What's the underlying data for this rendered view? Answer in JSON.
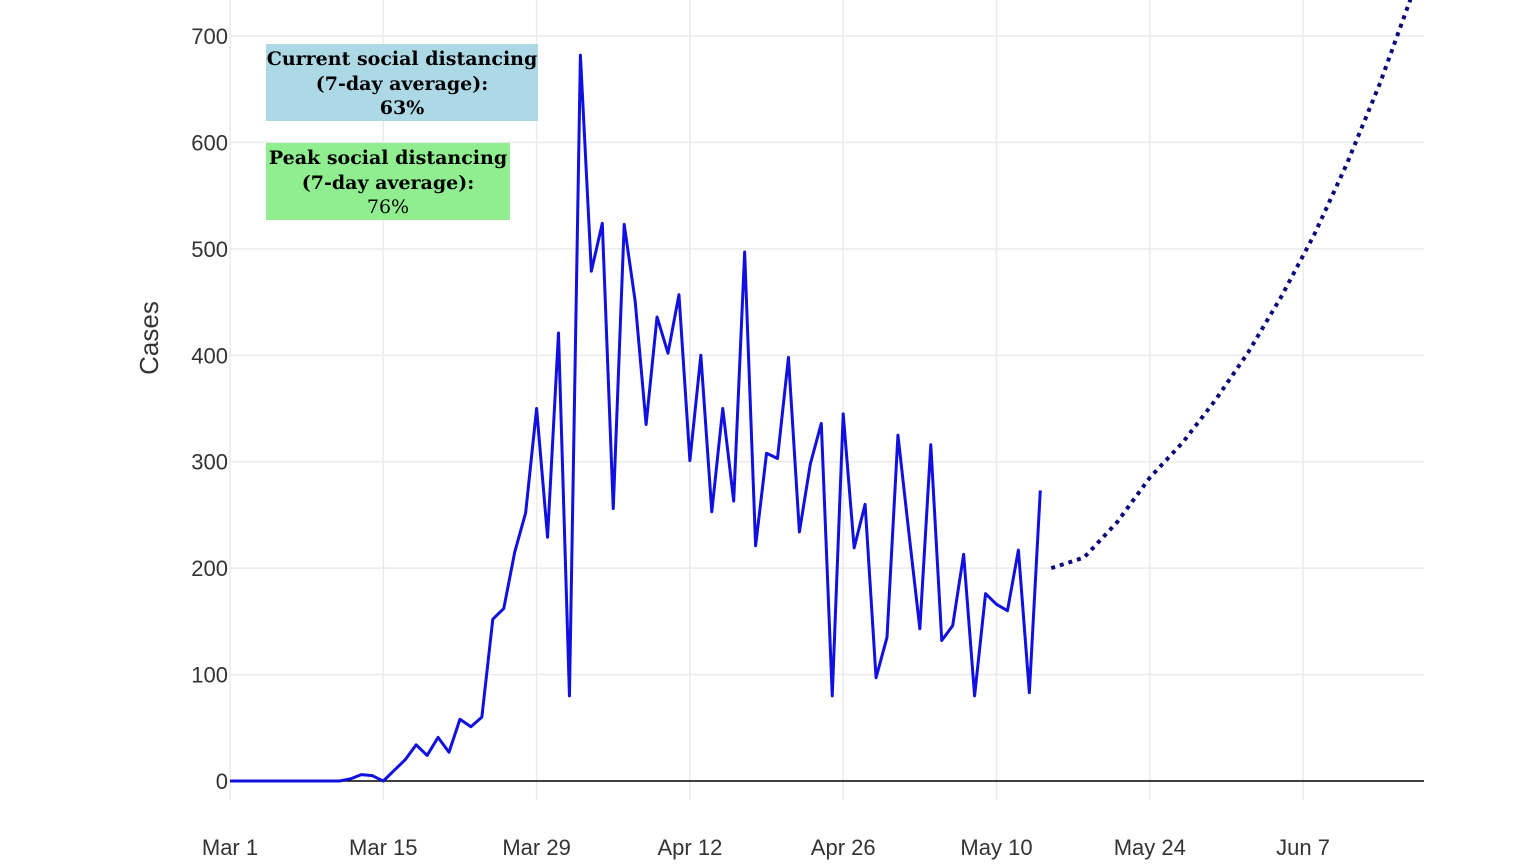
{
  "chart_data": {
    "type": "line",
    "ylabel": "Cases",
    "xlabel": "",
    "ylim": [
      0,
      700
    ],
    "y_ticks": [
      "0",
      "100",
      "200",
      "300",
      "400",
      "500",
      "600",
      "700"
    ],
    "x_ticks": [
      "Mar 1",
      "Mar 15",
      "Mar 29",
      "Apr 12",
      "Apr 26",
      "May 10",
      "May 24",
      "Jun 7"
    ],
    "grid": true,
    "colors": {
      "observed": "#1010e0",
      "projected": "#0a0a7a",
      "grid": "#ebebeb",
      "zero_line": "#000000"
    },
    "series": [
      {
        "style": "solid",
        "x": [
          "Mar 1",
          "Mar 2",
          "Mar 3",
          "Mar 4",
          "Mar 5",
          "Mar 6",
          "Mar 7",
          "Mar 8",
          "Mar 9",
          "Mar 10",
          "Mar 11",
          "Mar 12",
          "Mar 13",
          "Mar 14",
          "Mar 15",
          "Mar 16",
          "Mar 17",
          "Mar 18",
          "Mar 19",
          "Mar 20",
          "Mar 21",
          "Mar 22",
          "Mar 23",
          "Mar 24",
          "Mar 25",
          "Mar 26",
          "Mar 27",
          "Mar 28",
          "Mar 29",
          "Mar 30",
          "Mar 31",
          "Apr 1",
          "Apr 2",
          "Apr 3",
          "Apr 4",
          "Apr 5",
          "Apr 6",
          "Apr 7",
          "Apr 8",
          "Apr 9",
          "Apr 10",
          "Apr 11",
          "Apr 12",
          "Apr 13",
          "Apr 14",
          "Apr 15",
          "Apr 16",
          "Apr 17",
          "Apr 18",
          "Apr 19",
          "Apr 20",
          "Apr 21",
          "Apr 22",
          "Apr 23",
          "Apr 24",
          "Apr 25",
          "Apr 26",
          "Apr 27",
          "Apr 28",
          "Apr 29",
          "Apr 30",
          "May 1",
          "May 2",
          "May 3",
          "May 4",
          "May 5",
          "May 6",
          "May 7",
          "May 8",
          "May 9",
          "May 10",
          "May 11",
          "May 12",
          "May 13",
          "May 14"
        ],
        "values": [
          0,
          0,
          0,
          0,
          0,
          0,
          0,
          0,
          0,
          0,
          0,
          2,
          6,
          5,
          0,
          10,
          20,
          34,
          24,
          41,
          27,
          58,
          51,
          60,
          152,
          162,
          215,
          252,
          350,
          229,
          421,
          80,
          682,
          479,
          524,
          256,
          523,
          451,
          335,
          436,
          402,
          457,
          301,
          400,
          253,
          350,
          263,
          497,
          221,
          308,
          303,
          398,
          234,
          298,
          336,
          80,
          345,
          219,
          260,
          97,
          135,
          325,
          233,
          143,
          316,
          132,
          146,
          213,
          80,
          176,
          166,
          160,
          217,
          83,
          273
        ]
      },
      {
        "style": "dotted",
        "x": [
          "May 15",
          "May 18",
          "May 21",
          "May 24",
          "May 27",
          "May 30",
          "Jun 2",
          "Jun 5",
          "Jun 8",
          "Jun 11",
          "Jun 14",
          "Jun 17"
        ],
        "values": [
          200,
          210,
          243,
          285,
          318,
          358,
          403,
          455,
          513,
          580,
          655,
          740
        ]
      }
    ]
  },
  "annotations": {
    "current": {
      "line1": "Current social distancing",
      "line2": "(7-day average):",
      "value": "63%",
      "bg": "#add8e6"
    },
    "peak": {
      "line1": "Peak social distancing",
      "line2": "(7-day average):",
      "value": "76%",
      "bg": "#90ee90"
    }
  }
}
